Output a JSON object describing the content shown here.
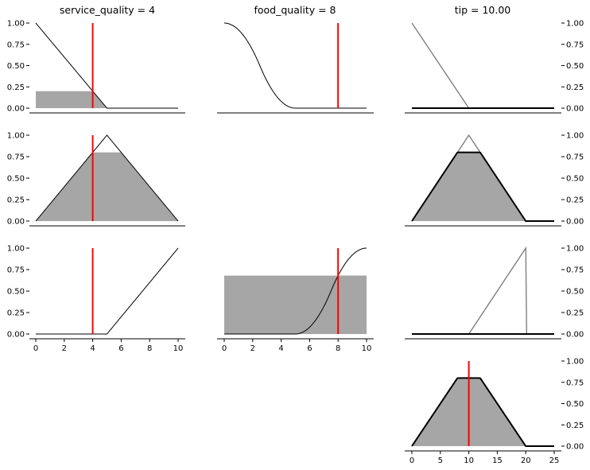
{
  "chart_data": {
    "type": "line",
    "titles": {
      "service": "service_quality = 4",
      "food": "food_quality = 8",
      "tip": "tip = 10.00"
    },
    "yticks": [
      0.0,
      0.25,
      0.5,
      0.75,
      1.0
    ],
    "ytick_labels": [
      "0.00",
      "0.25",
      "0.50",
      "0.75",
      "1.00"
    ],
    "input_xticks": [
      0,
      2,
      4,
      6,
      8,
      10
    ],
    "tip_xticks": [
      0,
      5,
      10,
      15,
      20,
      25
    ],
    "ylim": [
      0,
      1
    ],
    "input_xlim": [
      0,
      10
    ],
    "tip_xlim": [
      0,
      25
    ],
    "service_input": 4,
    "food_input": 8,
    "tip_output": 10.0,
    "colors": {
      "membership": "#000000",
      "output_membership": "#808080",
      "fill": "#a6a6a6",
      "marker": "#ff0000"
    },
    "rules": [
      {
        "service_mf": {
          "kind": "trimf",
          "params": [
            0,
            0,
            5
          ]
        },
        "service_fill": 0.2,
        "food_mf": {
          "kind": "zmf",
          "params": [
            0,
            5
          ]
        },
        "food_fill": 0.0,
        "tip_mf": {
          "kind": "trimf",
          "params": [
            0,
            0,
            10
          ]
        },
        "tip_strength": 0.0
      },
      {
        "service_mf": {
          "kind": "trimf",
          "params": [
            0,
            5,
            10
          ]
        },
        "service_fill": 0.8,
        "food_mf": null,
        "food_fill": null,
        "tip_mf": {
          "kind": "trimf",
          "params": [
            0,
            10,
            20
          ]
        },
        "tip_strength": 0.8
      },
      {
        "service_mf": {
          "kind": "trimf",
          "params": [
            5,
            10,
            10
          ]
        },
        "service_fill": 0.0,
        "food_mf": {
          "kind": "smf",
          "params": [
            5,
            10
          ]
        },
        "food_fill": 0.68,
        "tip_mf": {
          "kind": "trimf",
          "params": [
            10,
            20,
            20
          ]
        },
        "tip_strength": 0.0
      }
    ],
    "aggregate": {
      "kind": "trimf",
      "params": [
        0,
        10,
        20
      ],
      "height": 0.8
    }
  }
}
